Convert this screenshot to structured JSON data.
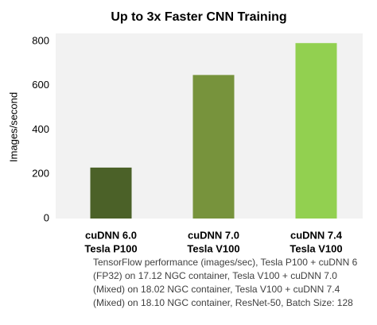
{
  "chart_data": {
    "type": "bar",
    "title": "Up to 3x Faster CNN Training",
    "y_label": "Images/second",
    "categories": [
      [
        "cuDNN 6.0",
        "Tesla P100"
      ],
      [
        "cuDNN 7.0",
        "Tesla V100"
      ],
      [
        "cuDNN 7.4",
        "Tesla V100"
      ]
    ],
    "values": [
      230,
      648,
      792
    ],
    "colors": [
      "#4b6128",
      "#77933c",
      "#92d050"
    ],
    "ylim": [
      0,
      800
    ],
    "yticks": [
      0,
      200,
      400,
      600,
      800
    ],
    "grid": false,
    "note": "TensorFlow performance (images/sec), Tesla P100 + cuDNN 6 (FP32) on 17.12 NGC container, Tesla V100 + cuDNN 7.0 (Mixed) on 18.02 NGC container, Tesla V100 + cuDNN 7.4 (Mixed) on 18.10 NGC container, ResNet-50, Batch Size: 128"
  }
}
